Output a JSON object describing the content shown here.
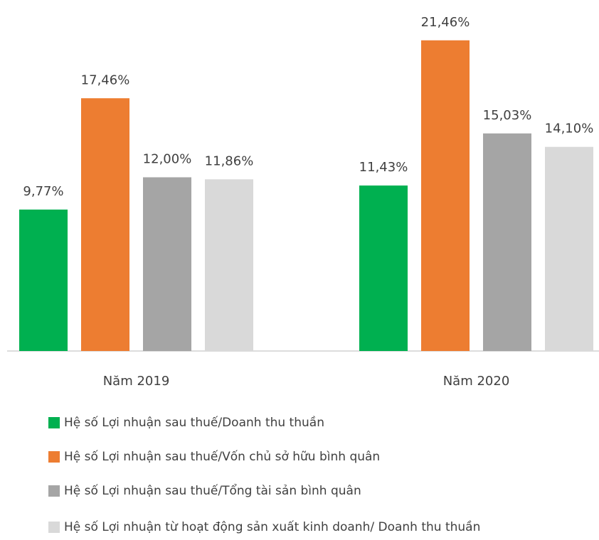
{
  "chart_data": {
    "type": "bar",
    "categories": [
      "Năm 2019",
      "Năm 2020"
    ],
    "series": [
      {
        "name": "Hệ số Lợi nhuận sau thuế/Doanh thu thuần",
        "color": "#00b050",
        "values": [
          9.77,
          11.43
        ],
        "value_labels": [
          "9,77%",
          "11,43%"
        ]
      },
      {
        "name": "Hệ số Lợi nhuận sau thuế/Vốn chủ sở hữu bình quân",
        "color": "#ed7d31",
        "values": [
          17.46,
          21.46
        ],
        "value_labels": [
          "17,46%",
          "21,46%"
        ]
      },
      {
        "name": "Hệ số Lợi nhuận sau thuế/Tổng tài sản bình quân",
        "color": "#a5a5a5",
        "values": [
          12.0,
          15.03
        ],
        "value_labels": [
          "12,00%",
          "15,03%"
        ]
      },
      {
        "name": "Hệ số Lợi nhuận từ hoạt động sản xuất kinh doanh/ Doanh thu thuần",
        "color": "#d9d9d9",
        "values": [
          11.86,
          14.1
        ],
        "value_labels": [
          "11,86%",
          "14,10%"
        ]
      }
    ],
    "ylim": [
      0,
      24
    ]
  }
}
